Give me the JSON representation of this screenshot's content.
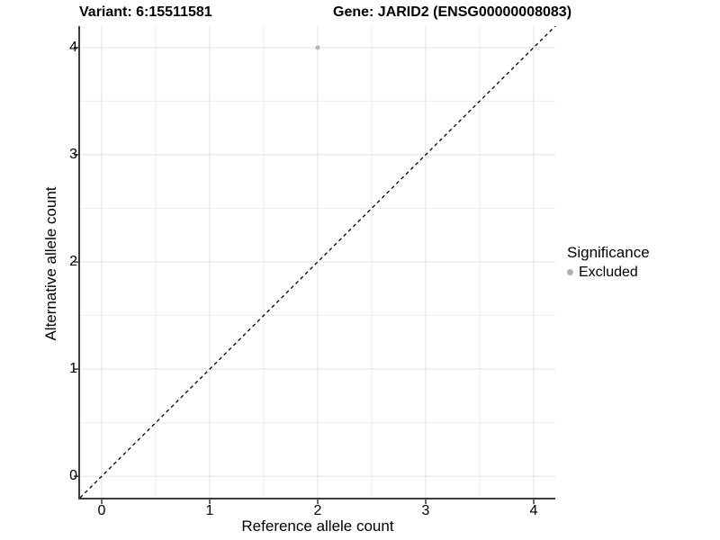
{
  "header": {
    "variant_title": "Variant: 6:15511581",
    "gene_title": "Gene: JARID2 (ENSG00000008083)"
  },
  "chart_data": {
    "type": "scatter",
    "title": "Variant: 6:15511581   Gene: JARID2 (ENSG00000008083)",
    "xlabel": "Reference allele count",
    "ylabel": "Alternative allele count",
    "xlim": [
      -0.2,
      4.2
    ],
    "ylim": [
      -0.2,
      4.2
    ],
    "x_ticks": [
      0,
      1,
      2,
      3,
      4
    ],
    "y_ticks": [
      0,
      1,
      2,
      3,
      4
    ],
    "x_minor_breaks": [
      0.5,
      1.5,
      2.5,
      3.5
    ],
    "y_minor_breaks": [
      0.5,
      1.5,
      2.5,
      3.5
    ],
    "grid": true,
    "series": [
      {
        "name": "Excluded",
        "points": [
          {
            "x": 2,
            "y": 4
          }
        ],
        "color": "#b9b9b9"
      }
    ],
    "abline": {
      "slope": 1,
      "intercept": 0,
      "style": "dashed",
      "color": "#000000"
    },
    "legend": {
      "title": "Significance",
      "position": "right",
      "items": [
        {
          "label": "Excluded",
          "color": "#b0b0b0"
        }
      ]
    }
  },
  "colors": {
    "background": "#ffffff",
    "grid_major": "#e0e0e0",
    "grid_minor": "#ededed",
    "axis_line": "#3c3c3c",
    "tick_mark": "#3c3c3c",
    "text": "#000000",
    "point": "#b9b9b9"
  }
}
